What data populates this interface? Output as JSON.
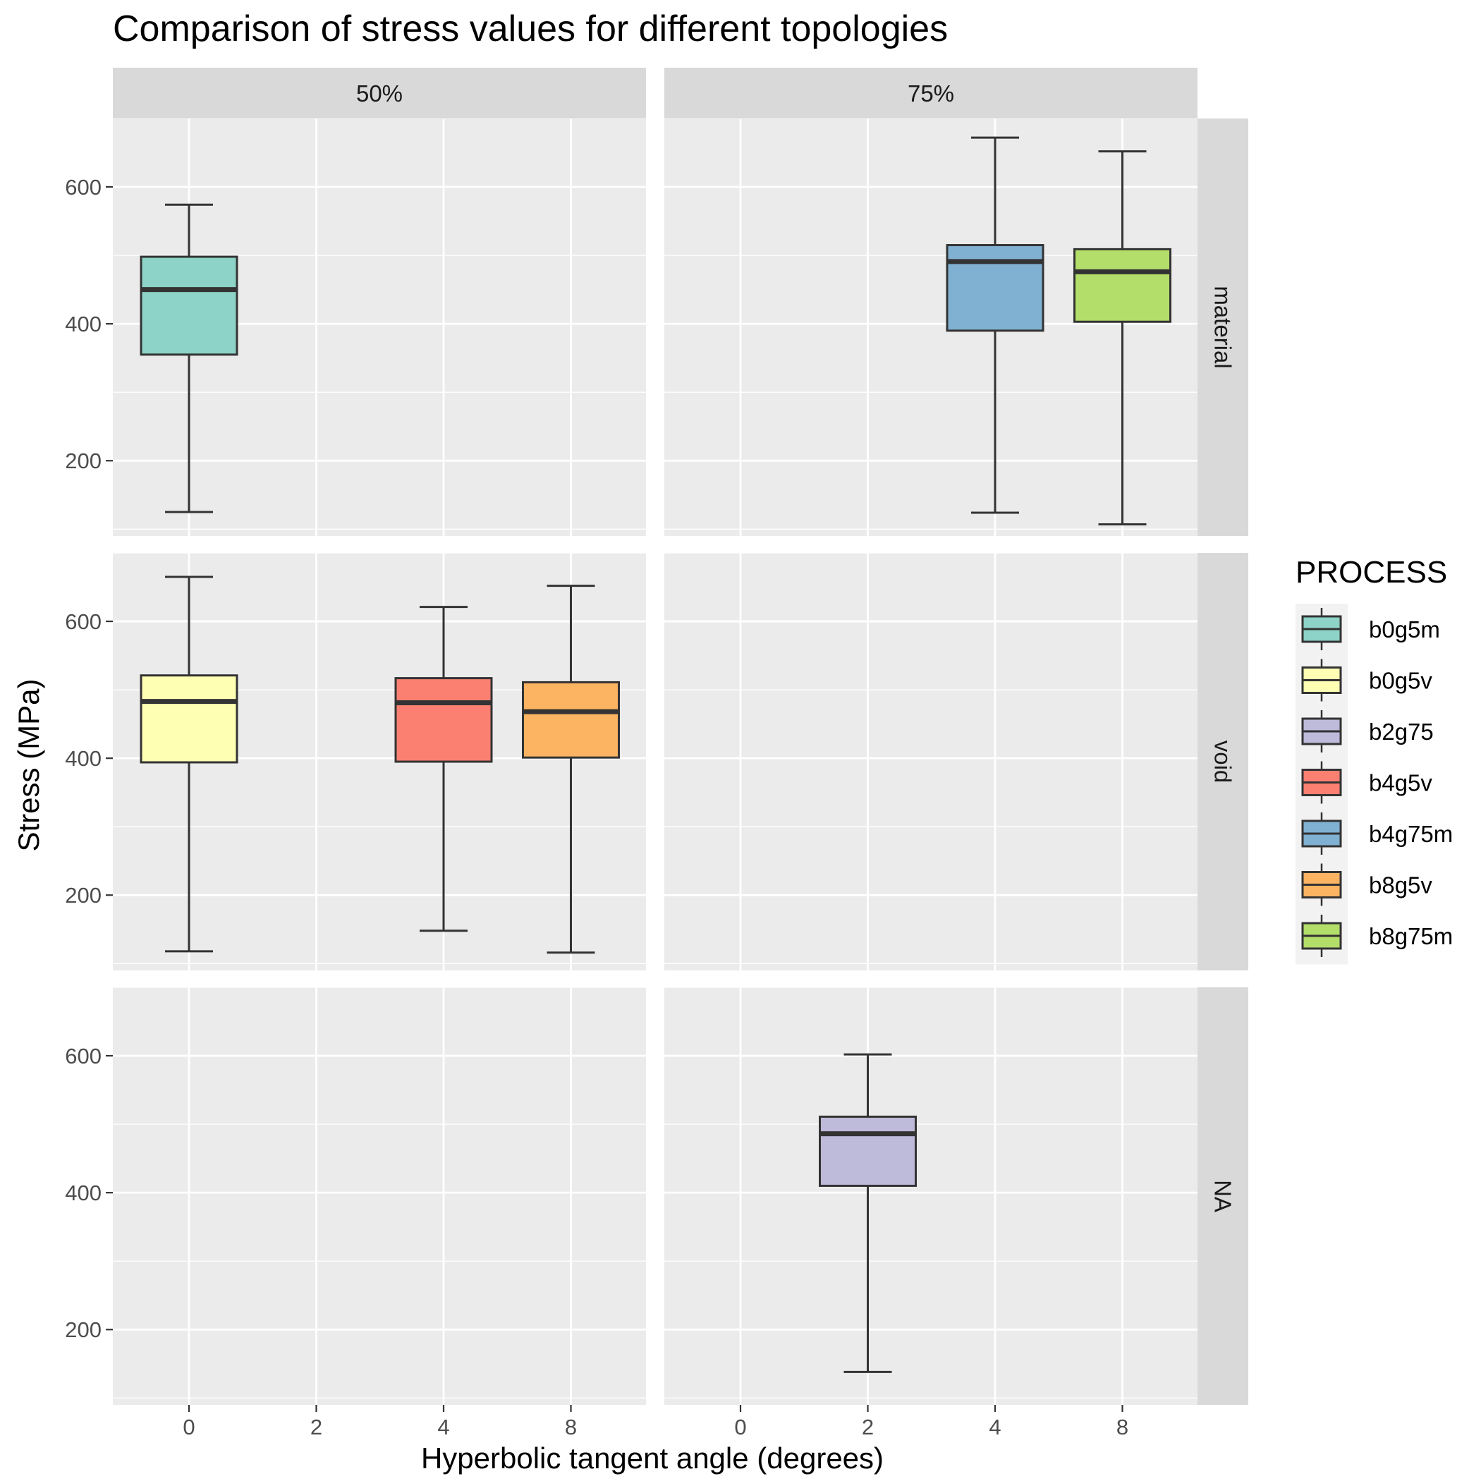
{
  "chart_data": {
    "type": "boxplot",
    "title": "Comparison of stress values for different topologies",
    "xlabel": "Hyperbolic tangent angle (degrees)",
    "ylabel": "Stress (MPa)",
    "x_ticks": [
      0,
      2,
      4,
      8
    ],
    "y_ticks": [
      200,
      400,
      600
    ],
    "ylim": [
      90,
      700
    ],
    "grid": true,
    "facet_columns": [
      "50%",
      "75%"
    ],
    "facet_rows": [
      "material",
      "void",
      "NA"
    ],
    "legend": {
      "title": "PROCESS",
      "position": "right",
      "items": [
        {
          "label": "b0g5m",
          "color": "#8DD3C7"
        },
        {
          "label": "b0g5v",
          "color": "#FFFFB3"
        },
        {
          "label": "b2g75",
          "color": "#BEBADA"
        },
        {
          "label": "b4g5v",
          "color": "#FB8072"
        },
        {
          "label": "b4g75m",
          "color": "#80B1D3"
        },
        {
          "label": "b8g5v",
          "color": "#FDB462"
        },
        {
          "label": "b8g75m",
          "color": "#B3DE69"
        }
      ]
    },
    "boxes": [
      {
        "column": "50%",
        "row": "material",
        "x": "0",
        "process": "b0g5m",
        "min": 125,
        "q1": 355,
        "median": 450,
        "q3": 498,
        "max": 574
      },
      {
        "column": "75%",
        "row": "material",
        "x": "4",
        "process": "b4g75m",
        "min": 124,
        "q1": 390,
        "median": 491,
        "q3": 515,
        "max": 672
      },
      {
        "column": "75%",
        "row": "material",
        "x": "8",
        "process": "b8g75m",
        "min": 107,
        "q1": 403,
        "median": 476,
        "q3": 509,
        "max": 652
      },
      {
        "column": "50%",
        "row": "void",
        "x": "0",
        "process": "b0g5v",
        "min": 118,
        "q1": 394,
        "median": 483,
        "q3": 521,
        "max": 665
      },
      {
        "column": "50%",
        "row": "void",
        "x": "4",
        "process": "b4g5v",
        "min": 148,
        "q1": 395,
        "median": 481,
        "q3": 517,
        "max": 621
      },
      {
        "column": "50%",
        "row": "void",
        "x": "8",
        "process": "b8g5v",
        "min": 116,
        "q1": 401,
        "median": 468,
        "q3": 511,
        "max": 652
      },
      {
        "column": "75%",
        "row": "NA",
        "x": "2",
        "process": "b2g75",
        "min": 138,
        "q1": 410,
        "median": 486,
        "q3": 511,
        "max": 602
      }
    ]
  }
}
